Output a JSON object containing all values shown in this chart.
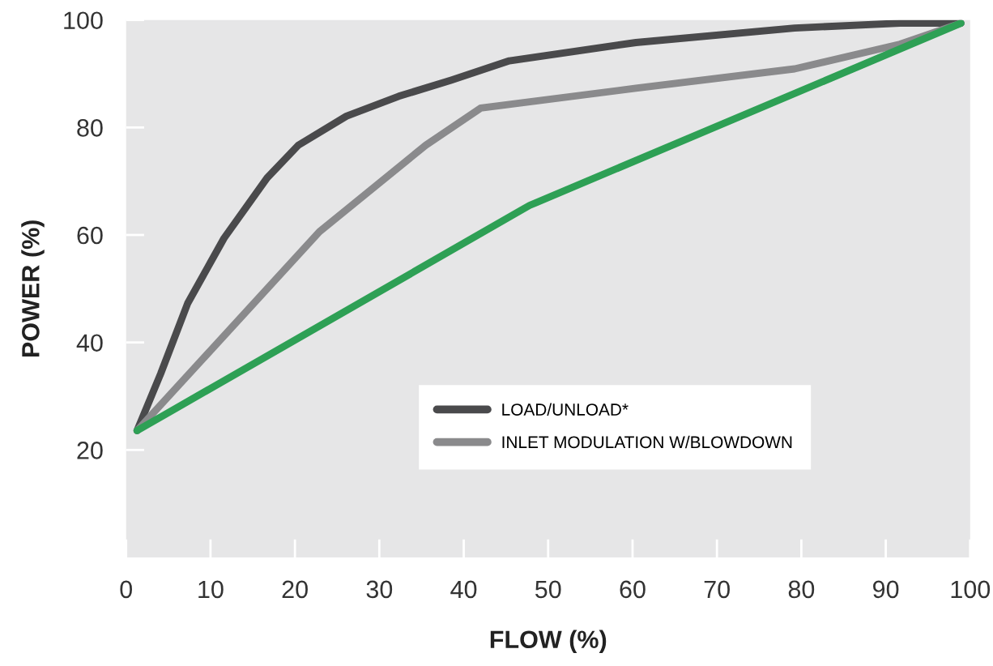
{
  "chart_data": {
    "type": "line",
    "xlabel": "FLOW (%)",
    "ylabel": "POWER (%)",
    "xlim": [
      0,
      100
    ],
    "ylim": [
      0,
      100
    ],
    "xticks": [
      0,
      10,
      20,
      30,
      40,
      50,
      60,
      70,
      80,
      90,
      100
    ],
    "yticks": [
      20,
      40,
      60,
      80,
      100
    ],
    "grid": false,
    "legend": "bottom right",
    "marker": "none",
    "line_style": "solid",
    "series": [
      {
        "name": "LOAD/UNLOAD*",
        "color": "#4a4a4c",
        "x": [
          1.3,
          4.1,
          7.3,
          11.6,
          16.7,
          20.4,
          26.1,
          32.3,
          38.5,
          45.4,
          60.4,
          79.2,
          91.7,
          98.9
        ],
        "values": [
          23.6,
          34.2,
          47.3,
          59.4,
          70.6,
          76.7,
          82.1,
          85.8,
          88.8,
          92.4,
          95.8,
          98.5,
          99.4,
          99.4
        ]
      },
      {
        "name": "INLET MODULATION W/BLOWDOWN",
        "color": "#8a8a8c",
        "x": [
          1.3,
          22.9,
          35.5,
          42.0,
          60.4,
          79.2,
          91.7,
          98.9
        ],
        "values": [
          23.6,
          60.6,
          76.7,
          83.6,
          87.3,
          90.9,
          95.5,
          99.4
        ]
      },
      {
        "color": "#2ea055",
        "x": [
          1.3,
          47.8,
          98.9
        ],
        "values": [
          23.6,
          65.5,
          99.4
        ]
      }
    ]
  }
}
